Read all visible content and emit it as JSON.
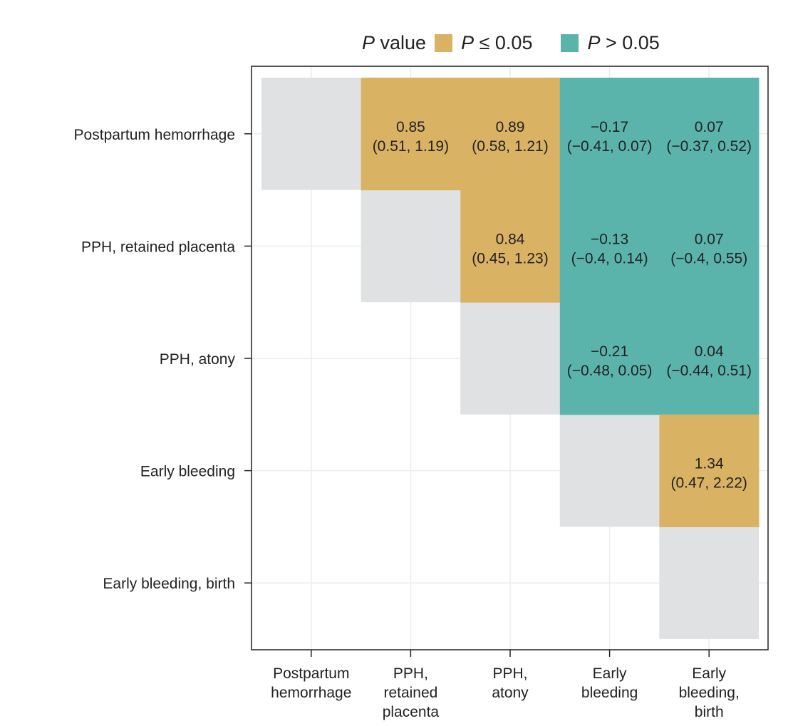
{
  "chart_data": {
    "type": "heatmap",
    "legend": {
      "title_italic": "P",
      "title_rest": " value",
      "placement": "top",
      "items": [
        {
          "italic": "P",
          "rest": " ≤ 0.05",
          "color": "#D9B263"
        },
        {
          "italic": "P",
          "rest": " > 0.05",
          "color": "#5BB4AC"
        }
      ]
    },
    "colors": {
      "significant": "#D9B263",
      "not_significant": "#5BB4AC",
      "diagonal": "#E0E1E2",
      "frame": "#222222"
    },
    "rows": [
      "Postpartum hemorrhage",
      "PPH, retained placenta",
      "PPH, atony",
      "Early bleeding",
      "Early bleeding, birth"
    ],
    "columns": [
      [
        "Postpartum",
        "hemorrhage"
      ],
      [
        "PPH,",
        "retained",
        "placenta"
      ],
      [
        "PPH,",
        "atony"
      ],
      [
        "Early",
        "bleeding"
      ],
      [
        "Early",
        "bleeding,",
        "birth"
      ]
    ],
    "cells": [
      {
        "row": 0,
        "col": 1,
        "value": "0.85",
        "ci": "(0.51, 1.19)",
        "significant": true
      },
      {
        "row": 0,
        "col": 2,
        "value": "0.89",
        "ci": "(0.58, 1.21)",
        "significant": true
      },
      {
        "row": 0,
        "col": 3,
        "value": "−0.17",
        "ci": "(−0.41, 0.07)",
        "significant": false
      },
      {
        "row": 0,
        "col": 4,
        "value": "0.07",
        "ci": "(−0.37, 0.52)",
        "significant": false
      },
      {
        "row": 1,
        "col": 2,
        "value": "0.84",
        "ci": "(0.45, 1.23)",
        "significant": true
      },
      {
        "row": 1,
        "col": 3,
        "value": "−0.13",
        "ci": "(−0.4, 0.14)",
        "significant": false
      },
      {
        "row": 1,
        "col": 4,
        "value": "0.07",
        "ci": "(−0.4, 0.55)",
        "significant": false
      },
      {
        "row": 2,
        "col": 3,
        "value": "−0.21",
        "ci": "(−0.48, 0.05)",
        "significant": false
      },
      {
        "row": 2,
        "col": 4,
        "value": "0.04",
        "ci": "(−0.44, 0.51)",
        "significant": false
      },
      {
        "row": 3,
        "col": 4,
        "value": "1.34",
        "ci": "(0.47, 2.22)",
        "significant": true
      }
    ],
    "diagonal": [
      0,
      1,
      2,
      3,
      4
    ],
    "grid": true
  }
}
